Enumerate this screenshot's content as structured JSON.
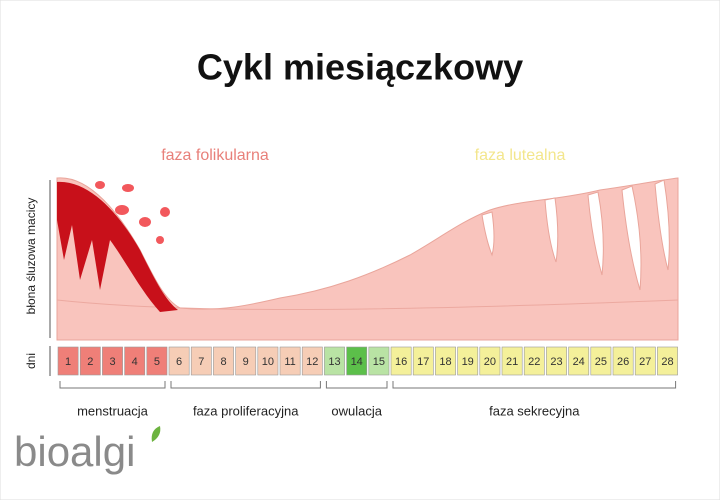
{
  "title": "Cykl miesiączkowy",
  "phases": [
    {
      "label": "faza folikularna",
      "color": "#e8807a"
    },
    {
      "label": "faza lutealna",
      "color": "#f3e68c"
    }
  ],
  "y_label": "błona śluzowa macicy",
  "days_label": "dni",
  "stages": [
    {
      "label": "menstruacja",
      "days": [
        1,
        2,
        3,
        4,
        5
      ],
      "color": "#ef7f78"
    },
    {
      "label": "faza proliferacyjna",
      "days": [
        6,
        7,
        8,
        9,
        10,
        11,
        12
      ],
      "color": "#f6cdb6"
    },
    {
      "label": "owulacja",
      "days": [
        13,
        14,
        15
      ],
      "color": "#b9e3a4"
    },
    {
      "label": "faza sekrecyjna",
      "days": [
        16,
        17,
        18,
        19,
        20,
        21,
        22,
        23,
        24,
        25,
        26,
        27,
        28
      ],
      "color": "#f4f09a"
    }
  ],
  "logo": "bioalgi"
}
